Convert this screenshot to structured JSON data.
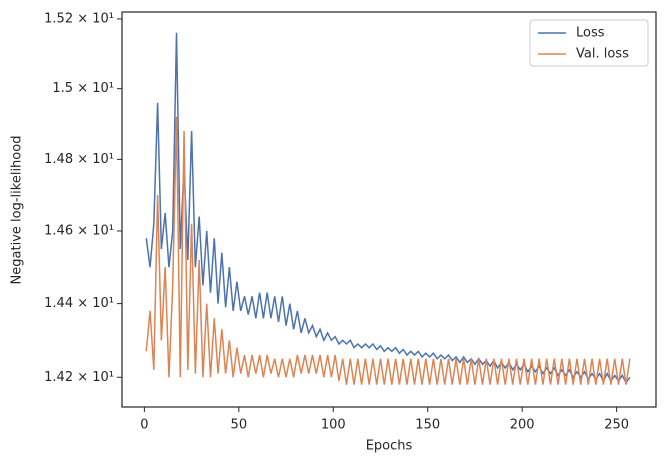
{
  "chart_data": {
    "type": "line",
    "yscale": "log",
    "xlabel": "Epochs",
    "ylabel": "Negative log-likelihood",
    "legend": "upper right",
    "xlim": [
      -11.85,
      270.85
    ],
    "xticks": [
      0,
      50,
      100,
      150,
      200,
      250
    ],
    "ylim": [
      14.12,
      15.22
    ],
    "yticks": [
      {
        "value": 14.2,
        "label": "1.42 × 10¹"
      },
      {
        "value": 14.4,
        "label": "1.44 × 10¹"
      },
      {
        "value": 14.6,
        "label": "1.46 × 10¹"
      },
      {
        "value": 14.8,
        "label": "1.48 × 10¹"
      },
      {
        "value": 15.0,
        "label": "1.5 × 10¹"
      },
      {
        "value": 15.2,
        "label": "1.52 × 10¹"
      }
    ],
    "x": [
      1,
      3,
      5,
      7,
      9,
      11,
      13,
      15,
      17,
      19,
      21,
      23,
      25,
      27,
      29,
      31,
      33,
      35,
      37,
      39,
      41,
      43,
      45,
      47,
      49,
      51,
      53,
      55,
      57,
      59,
      61,
      63,
      65,
      67,
      69,
      71,
      73,
      75,
      77,
      79,
      81,
      83,
      85,
      87,
      89,
      91,
      93,
      95,
      97,
      99,
      101,
      103,
      105,
      107,
      109,
      111,
      113,
      115,
      117,
      119,
      121,
      123,
      125,
      127,
      129,
      131,
      133,
      135,
      137,
      139,
      141,
      143,
      145,
      147,
      149,
      151,
      153,
      155,
      157,
      159,
      161,
      163,
      165,
      167,
      169,
      171,
      173,
      175,
      177,
      179,
      181,
      183,
      185,
      187,
      189,
      191,
      193,
      195,
      197,
      199,
      201,
      203,
      205,
      207,
      209,
      211,
      213,
      215,
      217,
      219,
      221,
      223,
      225,
      227,
      229,
      231,
      233,
      235,
      237,
      239,
      241,
      243,
      245,
      247,
      249,
      251,
      253,
      255,
      257
    ],
    "series": [
      {
        "name": "Loss",
        "color": "#4c72b0",
        "values": [
          14.58,
          14.5,
          14.62,
          14.96,
          14.55,
          14.65,
          14.5,
          14.6,
          15.16,
          14.55,
          14.78,
          14.52,
          14.88,
          14.5,
          14.64,
          14.45,
          14.6,
          14.43,
          14.58,
          14.4,
          14.54,
          14.39,
          14.5,
          14.38,
          14.46,
          14.38,
          14.42,
          14.37,
          14.42,
          14.36,
          14.43,
          14.36,
          14.43,
          14.36,
          14.42,
          14.35,
          14.42,
          14.34,
          14.4,
          14.33,
          14.38,
          14.32,
          14.36,
          14.32,
          14.34,
          14.31,
          14.33,
          14.3,
          14.32,
          14.3,
          14.31,
          14.29,
          14.3,
          14.29,
          14.3,
          14.28,
          14.29,
          14.28,
          14.29,
          14.28,
          14.29,
          14.275,
          14.285,
          14.27,
          14.28,
          14.27,
          14.28,
          14.265,
          14.275,
          14.26,
          14.27,
          14.26,
          14.27,
          14.255,
          14.265,
          14.255,
          14.265,
          14.25,
          14.26,
          14.25,
          14.26,
          14.245,
          14.255,
          14.24,
          14.255,
          14.24,
          14.25,
          14.235,
          14.25,
          14.235,
          14.245,
          14.23,
          14.245,
          14.225,
          14.24,
          14.225,
          14.24,
          14.22,
          14.235,
          14.22,
          14.235,
          14.215,
          14.23,
          14.215,
          14.23,
          14.21,
          14.225,
          14.21,
          14.225,
          14.205,
          14.22,
          14.205,
          14.22,
          14.2,
          14.215,
          14.2,
          14.215,
          14.195,
          14.21,
          14.195,
          14.21,
          14.19,
          14.21,
          14.19,
          14.205,
          14.19,
          14.205,
          14.185,
          14.2
        ]
      },
      {
        "name": "Val. loss",
        "color": "#dd8452",
        "values": [
          14.27,
          14.38,
          14.22,
          14.7,
          14.3,
          14.5,
          14.2,
          14.45,
          14.92,
          14.2,
          14.88,
          14.22,
          14.62,
          14.21,
          14.52,
          14.2,
          14.4,
          14.2,
          14.36,
          14.21,
          14.33,
          14.21,
          14.3,
          14.2,
          14.28,
          14.21,
          14.26,
          14.2,
          14.26,
          14.21,
          14.26,
          14.2,
          14.26,
          14.21,
          14.25,
          14.2,
          14.25,
          14.2,
          14.25,
          14.2,
          14.26,
          14.21,
          14.26,
          14.21,
          14.26,
          14.21,
          14.26,
          14.2,
          14.26,
          14.2,
          14.26,
          14.19,
          14.25,
          14.18,
          14.25,
          14.18,
          14.25,
          14.18,
          14.25,
          14.18,
          14.25,
          14.18,
          14.25,
          14.18,
          14.25,
          14.18,
          14.25,
          14.18,
          14.25,
          14.18,
          14.25,
          14.18,
          14.25,
          14.18,
          14.25,
          14.18,
          14.25,
          14.18,
          14.25,
          14.18,
          14.25,
          14.18,
          14.25,
          14.18,
          14.25,
          14.18,
          14.25,
          14.18,
          14.25,
          14.18,
          14.25,
          14.18,
          14.25,
          14.18,
          14.25,
          14.18,
          14.25,
          14.18,
          14.25,
          14.18,
          14.25,
          14.18,
          14.25,
          14.18,
          14.25,
          14.18,
          14.25,
          14.18,
          14.25,
          14.18,
          14.25,
          14.18,
          14.25,
          14.18,
          14.25,
          14.18,
          14.25,
          14.18,
          14.25,
          14.18,
          14.25,
          14.18,
          14.25,
          14.18,
          14.25,
          14.18,
          14.25,
          14.18,
          14.25
        ]
      }
    ]
  }
}
